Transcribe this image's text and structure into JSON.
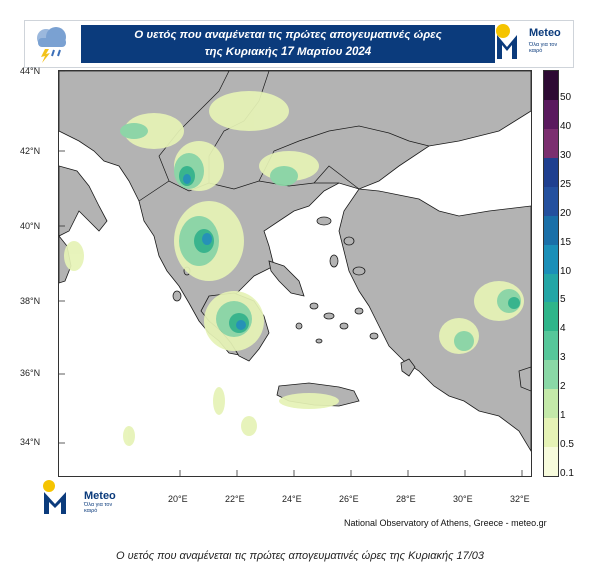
{
  "header": {
    "title_line1": "Ο υετός που αναμένεται τις πρώτες απογευματινές ώρες",
    "title_line2": "της Κυριακής 17 Μαρτίου 2024",
    "logo_name": "Meteo",
    "logo_tagline": "Όλα για τον καιρό"
  },
  "map": {
    "lat_labels": [
      "44°N",
      "42°N",
      "40°N",
      "38°N",
      "36°N",
      "34°N"
    ],
    "lon_labels": [
      "20°E",
      "22°E",
      "24°E",
      "26°E",
      "28°E",
      "30°E",
      "32°E"
    ],
    "land_color": "#b3b3b3",
    "sea_color": "#ffffff"
  },
  "legend": {
    "labels": [
      "50",
      "40",
      "30",
      "25",
      "20",
      "15",
      "10",
      "5",
      "4",
      "3",
      "2",
      "1",
      "0.5",
      "0.1"
    ],
    "colors": [
      "#2d0a33",
      "#5a1a5e",
      "#7b2f6f",
      "#1f3f8f",
      "#24509e",
      "#1a6fa8",
      "#1b8fb8",
      "#23a6a6",
      "#2fb58a",
      "#56c79a",
      "#8ad8a6",
      "#c4e9a9",
      "#e6f3b6",
      "#f7fbdc"
    ]
  },
  "footer": {
    "logo_name": "Meteo",
    "logo_tagline": "Όλα για τον καιρό",
    "credit": "National Observatory of Athens, Greece - meteo.gr",
    "caption": "Ο υετός που αναμένεται τις  πρώτες απογευματινές ώρες της Κυριακής 17/03"
  }
}
